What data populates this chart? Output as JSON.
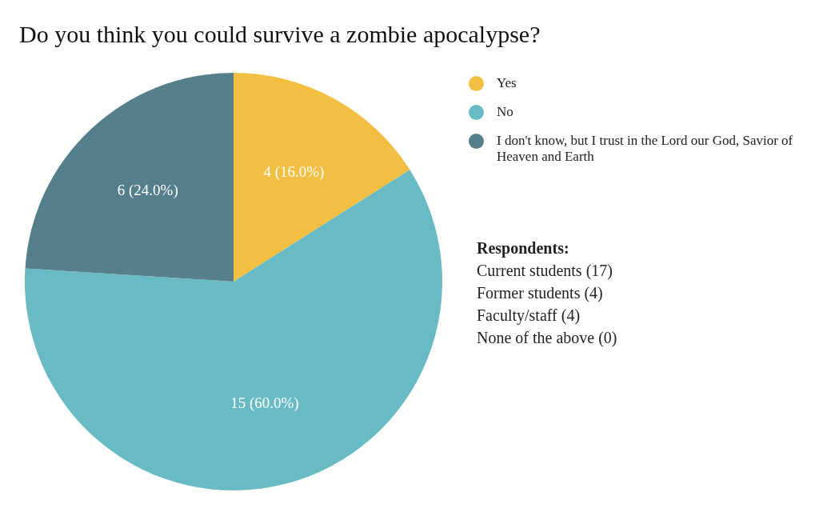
{
  "chart_data": {
    "type": "pie",
    "title": "Do you think you could survive a zombie apocalypse?",
    "categories": [
      "Yes",
      "No",
      "I don't know, but I trust in the Lord our God, Savior of Heaven and Earth"
    ],
    "values": [
      4,
      15,
      6
    ],
    "colors": [
      "#f2bf42",
      "#68bbc4",
      "#557f8b"
    ],
    "value_labels": [
      "4 (16.0%)",
      "15 (60.0%)",
      "6 (24.0%)"
    ],
    "legend": "top right",
    "annotations": [
      "Respondents:",
      "Current students (17)",
      "Former students (4)",
      "Faculty/staff (4)",
      "None of the above (0)"
    ]
  }
}
